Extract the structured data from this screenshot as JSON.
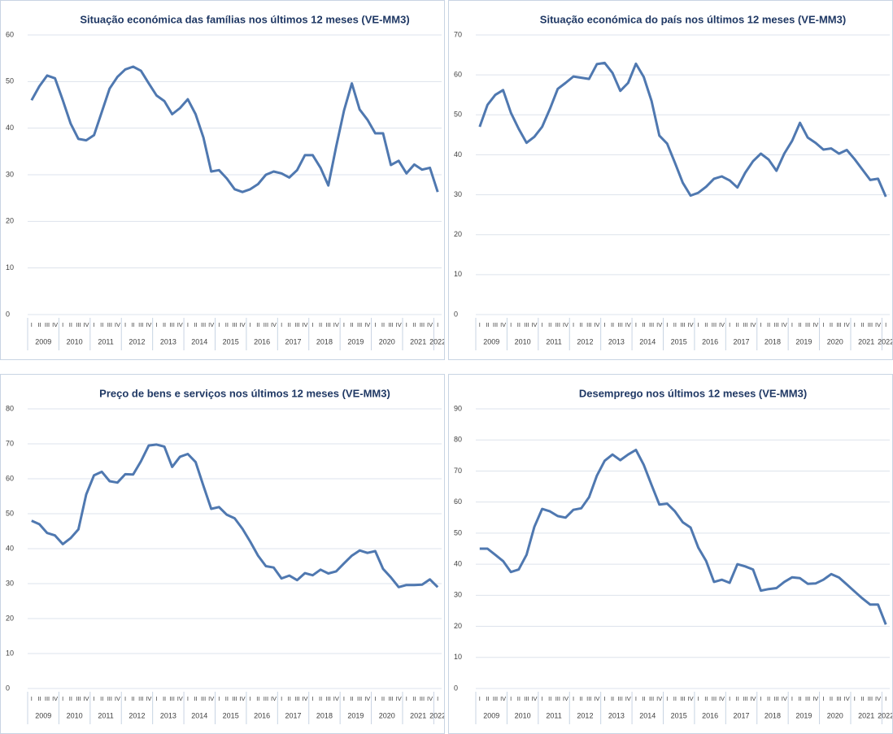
{
  "chart_data": [
    {
      "type": "line",
      "title": "Situação económica das famílias nos últimos 12 meses (VE-MM3)",
      "categories": [
        "I",
        "II",
        "III",
        "IV",
        "I",
        "II",
        "III",
        "IV",
        "I",
        "II",
        "III",
        "IV",
        "I",
        "II",
        "III",
        "IV",
        "I",
        "II",
        "III",
        "IV",
        "I",
        "II",
        "III",
        "IV",
        "I",
        "II",
        "III",
        "IV",
        "I",
        "II",
        "III",
        "IV",
        "I",
        "II",
        "III",
        "IV",
        "I",
        "II",
        "III",
        "IV",
        "I",
        "II",
        "III",
        "IV",
        "I",
        "II",
        "III",
        "IV",
        "I",
        "II",
        "III",
        "IV",
        "I"
      ],
      "years": [
        "2009",
        "2010",
        "2011",
        "2012",
        "2013",
        "2014",
        "2015",
        "2016",
        "2017",
        "2018",
        "2019",
        "2020",
        "2021",
        "2022"
      ],
      "values": [
        46,
        49,
        51.3,
        50.7,
        46,
        41,
        37.7,
        37.4,
        38.5,
        43.5,
        48.5,
        51,
        52.6,
        53.2,
        52.3,
        49.6,
        47,
        45.8,
        43,
        44.3,
        46.2,
        43,
        38,
        30.7,
        31,
        29.2,
        26.9,
        26.3,
        26.9,
        28,
        30,
        30.7,
        30.3,
        29.4,
        31,
        34.2,
        34.2,
        31.5,
        27.7,
        36,
        43.8,
        49.6,
        44,
        41.8,
        38.9,
        38.9,
        32.1,
        33,
        30.3,
        32.2,
        31.1,
        31.5,
        26.3
      ],
      "color": "#4f78b0",
      "ylim": [
        0,
        60
      ],
      "yticks": [
        0,
        10,
        20,
        30,
        40,
        50,
        60
      ],
      "grid": true
    },
    {
      "type": "line",
      "title": "Situação económica do país nos últimos 12 meses (VE-MM3)",
      "categories": [
        "I",
        "II",
        "III",
        "IV",
        "I",
        "II",
        "III",
        "IV",
        "I",
        "II",
        "III",
        "IV",
        "I",
        "II",
        "III",
        "IV",
        "I",
        "II",
        "III",
        "IV",
        "I",
        "II",
        "III",
        "IV",
        "I",
        "II",
        "III",
        "IV",
        "I",
        "II",
        "III",
        "IV",
        "I",
        "II",
        "III",
        "IV",
        "I",
        "II",
        "III",
        "IV",
        "I",
        "II",
        "III",
        "IV",
        "I",
        "II",
        "III",
        "IV",
        "I",
        "II",
        "III",
        "IV",
        "I"
      ],
      "years": [
        "2009",
        "2010",
        "2011",
        "2012",
        "2013",
        "2014",
        "2015",
        "2016",
        "2017",
        "2018",
        "2019",
        "2020",
        "2021",
        "2022"
      ],
      "values": [
        47,
        52.5,
        55,
        56.2,
        50.5,
        46.5,
        43,
        44.5,
        47,
        51.5,
        56.5,
        58,
        59.6,
        59.3,
        59,
        62.7,
        63,
        60.5,
        56,
        58,
        62.8,
        59.5,
        53.5,
        44.8,
        42.8,
        38,
        33,
        29.8,
        30.5,
        32,
        34,
        34.6,
        33.6,
        31.8,
        35.5,
        38.4,
        40.3,
        38.8,
        36,
        40.3,
        43.5,
        48,
        44.3,
        43,
        41.3,
        41.6,
        40.3,
        41.2,
        38.9,
        36.3,
        33.7,
        34,
        29.5
      ],
      "color": "#4f78b0",
      "ylim": [
        0,
        70
      ],
      "yticks": [
        0,
        10,
        20,
        30,
        40,
        50,
        60,
        70
      ],
      "grid": true
    },
    {
      "type": "line",
      "title": "Preço de bens e serviços nos últimos 12 meses (VE-MM3)",
      "categories": [
        "I",
        "II",
        "III",
        "IV",
        "I",
        "II",
        "III",
        "IV",
        "I",
        "II",
        "III",
        "IV",
        "I",
        "II",
        "III",
        "IV",
        "I",
        "II",
        "III",
        "IV",
        "I",
        "II",
        "III",
        "IV",
        "I",
        "II",
        "III",
        "IV",
        "I",
        "II",
        "III",
        "IV",
        "I",
        "II",
        "III",
        "IV",
        "I",
        "II",
        "III",
        "IV",
        "I",
        "II",
        "III",
        "IV",
        "I",
        "II",
        "III",
        "IV",
        "I",
        "II",
        "III",
        "IV",
        "I"
      ],
      "years": [
        "2009",
        "2010",
        "2011",
        "2012",
        "2013",
        "2014",
        "2015",
        "2016",
        "2017",
        "2018",
        "2019",
        "2020",
        "2021",
        "2022"
      ],
      "values": [
        48,
        47,
        44.5,
        43.8,
        41.3,
        43,
        45.5,
        55.5,
        61,
        62,
        59.3,
        58.9,
        61.3,
        61.2,
        65,
        69.5,
        69.8,
        69.2,
        63.4,
        66.3,
        67.1,
        64.8,
        58,
        51.4,
        51.9,
        49.7,
        48.7,
        45.7,
        42,
        38,
        35,
        34.6,
        31.5,
        32.3,
        31,
        33,
        32.4,
        34,
        32.9,
        33.5,
        35.8,
        38,
        39.5,
        38.8,
        39.3,
        34.2,
        31.8,
        29,
        29.6,
        29.6,
        29.7,
        31.2,
        29
      ],
      "color": "#4f78b0",
      "ylim": [
        0,
        80
      ],
      "yticks": [
        0,
        10,
        20,
        30,
        40,
        50,
        60,
        70,
        80
      ],
      "grid": true
    },
    {
      "type": "line",
      "title": "Desemprego nos últimos 12 meses (VE-MM3)",
      "categories": [
        "I",
        "II",
        "III",
        "IV",
        "I",
        "II",
        "III",
        "IV",
        "I",
        "II",
        "III",
        "IV",
        "I",
        "II",
        "III",
        "IV",
        "I",
        "II",
        "III",
        "IV",
        "I",
        "II",
        "III",
        "IV",
        "I",
        "II",
        "III",
        "IV",
        "I",
        "II",
        "III",
        "IV",
        "I",
        "II",
        "III",
        "IV",
        "I",
        "II",
        "III",
        "IV",
        "I",
        "II",
        "III",
        "IV",
        "I",
        "II",
        "III",
        "IV",
        "I",
        "II",
        "III",
        "IV",
        "I"
      ],
      "years": [
        "2009",
        "2010",
        "2011",
        "2012",
        "2013",
        "2014",
        "2015",
        "2016",
        "2017",
        "2018",
        "2019",
        "2020",
        "2021",
        "2022"
      ],
      "values": [
        45,
        45,
        43,
        41,
        37.5,
        38.3,
        43,
        52,
        57.8,
        57,
        55.5,
        55,
        57.5,
        58,
        61.6,
        68.5,
        73.3,
        75.3,
        73.5,
        75.3,
        76.8,
        72,
        65.5,
        59.2,
        59.5,
        57,
        53.5,
        51.8,
        45.3,
        41,
        34.3,
        35,
        34,
        40,
        39.3,
        38.3,
        31.5,
        32,
        32.3,
        34.3,
        35.8,
        35.5,
        33.7,
        33.8,
        35,
        36.8,
        35.7,
        33.5,
        31.2,
        29,
        27,
        27,
        20.6
      ],
      "color": "#4f78b0",
      "ylim": [
        0,
        90
      ],
      "yticks": [
        0,
        10,
        20,
        30,
        40,
        50,
        60,
        70,
        80,
        90
      ],
      "grid": true
    }
  ]
}
